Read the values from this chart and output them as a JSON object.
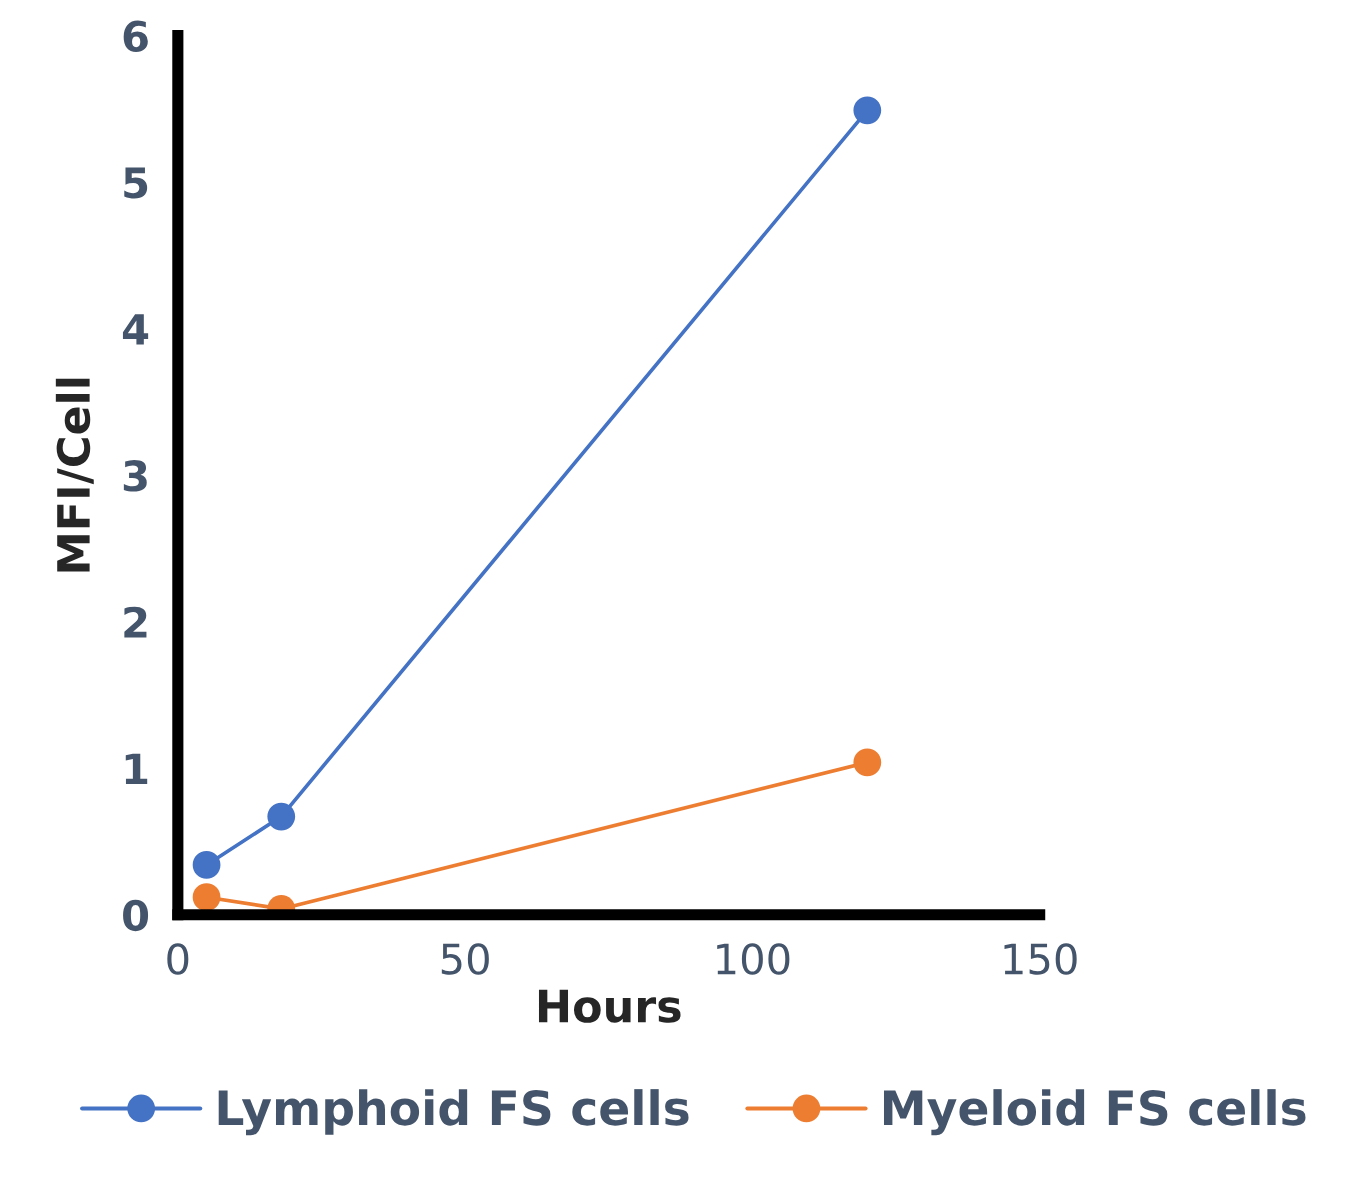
{
  "chart_data": {
    "type": "line",
    "xlabel": "Hours",
    "ylabel": "MFI/Cell",
    "xlim": [
      0,
      150
    ],
    "xticks": [
      0,
      50,
      100,
      150
    ],
    "ylim": [
      0,
      6
    ],
    "yticks": [
      0,
      1,
      2,
      3,
      4,
      5,
      6
    ],
    "marker": "circle",
    "line_style": "solid",
    "grid": false,
    "legend": "bottom",
    "series": [
      {
        "name": "Lymphoid FS cells",
        "color": "#4472c4",
        "x": [
          5,
          18,
          120
        ],
        "values": [
          0.34,
          0.67,
          5.49
        ]
      },
      {
        "name": "Myeloid FS cells",
        "color": "#ed7d31",
        "x": [
          5,
          18,
          120
        ],
        "values": [
          0.12,
          0.04,
          1.04
        ]
      }
    ]
  }
}
